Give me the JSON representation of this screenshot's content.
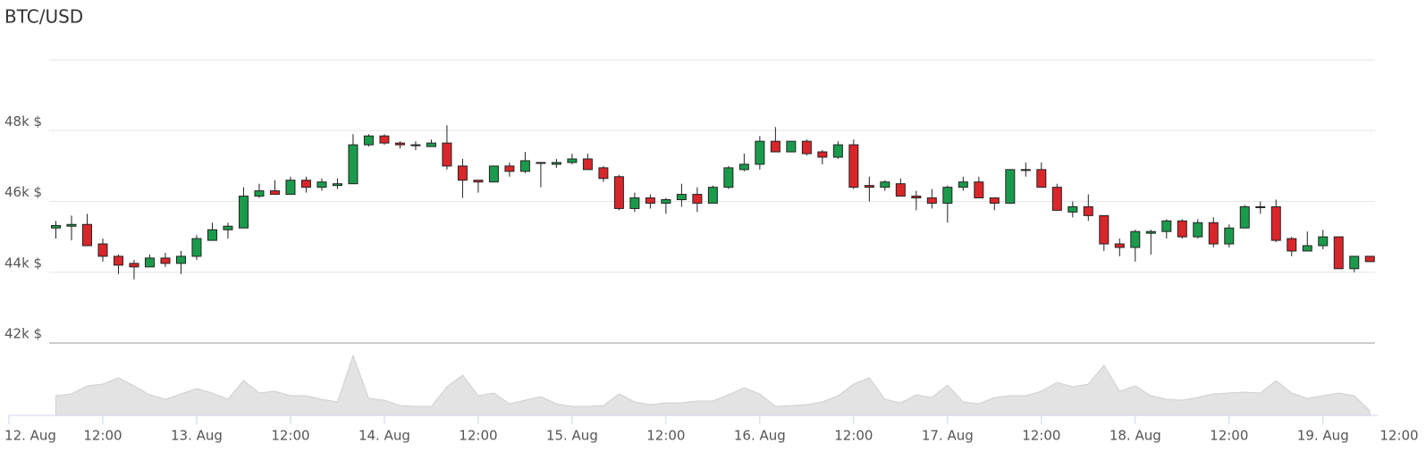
{
  "chart_data": {
    "type": "candlestick",
    "title": "BTC/USD",
    "x": [
      "12. Aug 06:00",
      "12. Aug 08:00",
      "12. Aug 10:00",
      "12. Aug 12:00",
      "12. Aug 14:00",
      "12. Aug 16:00",
      "12. Aug 18:00",
      "12. Aug 20:00",
      "12. Aug 22:00",
      "13. Aug 00:00",
      "13. Aug 02:00",
      "13. Aug 04:00",
      "13. Aug 06:00",
      "13. Aug 08:00",
      "13. Aug 10:00",
      "13. Aug 12:00",
      "13. Aug 14:00",
      "13. Aug 16:00",
      "13. Aug 18:00",
      "13. Aug 20:00",
      "13. Aug 22:00",
      "14. Aug 00:00",
      "14. Aug 02:00",
      "14. Aug 04:00",
      "14. Aug 06:00",
      "14. Aug 08:00",
      "14. Aug 10:00",
      "14. Aug 12:00",
      "14. Aug 14:00",
      "14. Aug 16:00",
      "14. Aug 18:00",
      "14. Aug 20:00",
      "14. Aug 22:00",
      "15. Aug 00:00",
      "15. Aug 02:00",
      "15. Aug 04:00",
      "15. Aug 06:00",
      "15. Aug 08:00",
      "15. Aug 10:00",
      "15. Aug 12:00",
      "15. Aug 14:00",
      "15. Aug 16:00",
      "15. Aug 18:00",
      "15. Aug 20:00",
      "15. Aug 22:00",
      "16. Aug 00:00",
      "16. Aug 02:00",
      "16. Aug 04:00",
      "16. Aug 06:00",
      "16. Aug 08:00",
      "16. Aug 10:00",
      "16. Aug 12:00",
      "16. Aug 14:00",
      "16. Aug 16:00",
      "16. Aug 18:00",
      "16. Aug 20:00",
      "16. Aug 22:00",
      "17. Aug 00:00",
      "17. Aug 02:00",
      "17. Aug 04:00",
      "17. Aug 06:00",
      "17. Aug 08:00",
      "17. Aug 10:00",
      "17. Aug 12:00",
      "17. Aug 14:00",
      "17. Aug 16:00",
      "17. Aug 18:00",
      "17. Aug 20:00",
      "17. Aug 22:00",
      "18. Aug 00:00",
      "18. Aug 02:00",
      "18. Aug 04:00",
      "18. Aug 06:00",
      "18. Aug 08:00",
      "18. Aug 10:00",
      "18. Aug 12:00",
      "18. Aug 14:00",
      "18. Aug 16:00",
      "18. Aug 18:00",
      "18. Aug 20:00",
      "18. Aug 22:00",
      "19. Aug 00:00",
      "19. Aug 02:00",
      "19. Aug 04:00",
      "19. Aug 06:00"
    ],
    "open": [
      45250,
      45300,
      45350,
      44800,
      44450,
      44250,
      44150,
      44400,
      44250,
      44450,
      44900,
      45200,
      45250,
      46150,
      46300,
      46200,
      46600,
      46400,
      46450,
      46500,
      47600,
      47850,
      47650,
      47600,
      47550,
      47650,
      47000,
      46600,
      46550,
      47000,
      46850,
      47100,
      47050,
      47100,
      47200,
      46950,
      46700,
      45800,
      46100,
      45950,
      46050,
      46200,
      45950,
      46400,
      46900,
      47050,
      47700,
      47400,
      47700,
      47400,
      47250,
      47600,
      46450,
      46400,
      46500,
      46150,
      46100,
      45950,
      46400,
      46550,
      46100,
      45950,
      46900,
      46900,
      46400,
      45700,
      45850,
      45600,
      44800,
      44700,
      45100,
      45150,
      45450,
      45000,
      45400,
      44800,
      45250,
      45850,
      45850,
      44950,
      44600,
      44750,
      45000,
      44100,
      44450
    ],
    "high": [
      45450,
      45600,
      45650,
      44950,
      44500,
      44350,
      44500,
      44550,
      44600,
      45050,
      45400,
      45400,
      46400,
      46500,
      46600,
      46700,
      46700,
      46650,
      46650,
      47900,
      47900,
      47900,
      47700,
      47700,
      47750,
      48150,
      47200,
      46600,
      47000,
      47100,
      47400,
      47100,
      47200,
      47350,
      47350,
      47000,
      46750,
      46250,
      46200,
      46100,
      46500,
      46400,
      46450,
      47000,
      47350,
      47850,
      48100,
      47700,
      47750,
      47450,
      47700,
      47750,
      46700,
      46600,
      46650,
      46300,
      46350,
      46450,
      46700,
      46700,
      46100,
      46900,
      47100,
      47100,
      46500,
      46000,
      46200,
      45600,
      44950,
      45200,
      45200,
      45500,
      45500,
      45500,
      45550,
      45350,
      45900,
      46000,
      46050,
      45000,
      45150,
      45200,
      45000,
      44450,
      44450
    ],
    "low": [
      44950,
      44900,
      44750,
      44300,
      43950,
      43800,
      44150,
      44150,
      43950,
      44350,
      44900,
      44950,
      45250,
      46100,
      46200,
      46200,
      46250,
      46300,
      46350,
      46500,
      47550,
      47600,
      47500,
      47450,
      47550,
      46900,
      46100,
      46250,
      46550,
      46700,
      46800,
      46400,
      46950,
      47050,
      46900,
      46550,
      45750,
      45700,
      45800,
      45650,
      45850,
      45700,
      45950,
      46350,
      46850,
      46900,
      47400,
      47400,
      47300,
      47050,
      47200,
      46350,
      46000,
      46300,
      46150,
      45750,
      45800,
      45400,
      46300,
      46100,
      45750,
      45950,
      46700,
      46400,
      45750,
      45550,
      45450,
      44600,
      44450,
      44300,
      44500,
      44950,
      44950,
      44950,
      44700,
      44700,
      45250,
      45650,
      44850,
      44450,
      44600,
      44650,
      44100,
      44000,
      44300
    ],
    "close": [
      45320,
      45350,
      44750,
      44450,
      44200,
      44150,
      44400,
      44250,
      44450,
      44950,
      45200,
      45300,
      46150,
      46300,
      46200,
      46600,
      46400,
      46550,
      46500,
      47600,
      47850,
      47650,
      47600,
      47600,
      47650,
      47000,
      46600,
      46550,
      47000,
      46850,
      47150,
      47100,
      47100,
      47200,
      46900,
      46650,
      45800,
      46100,
      45950,
      46050,
      46200,
      45950,
      46400,
      46950,
      47050,
      47700,
      47400,
      47700,
      47350,
      47250,
      47600,
      46400,
      46400,
      46550,
      46150,
      46100,
      45950,
      46400,
      46550,
      46100,
      45950,
      46900,
      46900,
      46400,
      45750,
      45850,
      45600,
      44800,
      44700,
      45150,
      45150,
      45450,
      45000,
      45400,
      44800,
      45250,
      45850,
      45850,
      44900,
      44600,
      44750,
      45000,
      44100,
      44450,
      44300
    ],
    "volume": [
      22,
      24,
      33,
      35,
      42,
      33,
      23,
      18,
      24,
      30,
      25,
      18,
      39,
      25,
      27,
      22,
      22,
      18,
      15,
      67,
      19,
      17,
      11,
      10,
      10,
      32,
      45,
      22,
      25,
      13,
      17,
      21,
      13,
      10,
      10,
      11,
      24,
      15,
      12,
      14,
      14,
      16,
      16,
      23,
      31,
      24,
      10,
      11,
      12,
      15,
      22,
      35,
      42,
      18,
      14,
      23,
      20,
      34,
      15,
      13,
      20,
      22,
      22,
      27,
      37,
      32,
      35,
      56,
      27,
      33,
      22,
      18,
      17,
      20,
      24,
      25,
      26,
      25,
      39,
      25,
      19,
      22,
      25,
      22,
      5
    ],
    "volume_ylim": [
      0,
      70
    ],
    "up_color": "#1a9b4b",
    "down_color": "#d9262b",
    "volume_color": "#e3e3e3",
    "xlim": [
      "12. Aug 00:00",
      "19. Aug 07:00"
    ],
    "xticks": [
      {
        "value": "12. Aug 00:00",
        "label": "12. Aug"
      },
      {
        "value": "12. Aug 12:00",
        "label": "12:00"
      },
      {
        "value": "13. Aug 00:00",
        "label": "13. Aug"
      },
      {
        "value": "13. Aug 12:00",
        "label": "12:00"
      },
      {
        "value": "14. Aug 00:00",
        "label": "14. Aug"
      },
      {
        "value": "14. Aug 12:00",
        "label": "12:00"
      },
      {
        "value": "15. Aug 00:00",
        "label": "15. Aug"
      },
      {
        "value": "15. Aug 12:00",
        "label": "12:00"
      },
      {
        "value": "16. Aug 00:00",
        "label": "16. Aug"
      },
      {
        "value": "16. Aug 12:00",
        "label": "12:00"
      },
      {
        "value": "17. Aug 00:00",
        "label": "17. Aug"
      },
      {
        "value": "17. Aug 12:00",
        "label": "12:00"
      },
      {
        "value": "18. Aug 00:00",
        "label": "18. Aug"
      },
      {
        "value": "18. Aug 12:00",
        "label": "12:00"
      },
      {
        "value": "19. Aug 00:00",
        "label": "19. Aug"
      },
      {
        "value": "19. Aug 12:00",
        "label": "12:00"
      }
    ],
    "ylim": [
      42000,
      50000
    ],
    "yticks": [
      {
        "value": 42000,
        "label": "42k $"
      },
      {
        "value": 44000,
        "label": "44k $"
      },
      {
        "value": 46000,
        "label": "46k $"
      },
      {
        "value": 48000,
        "label": "48k $"
      }
    ],
    "grid": true
  }
}
